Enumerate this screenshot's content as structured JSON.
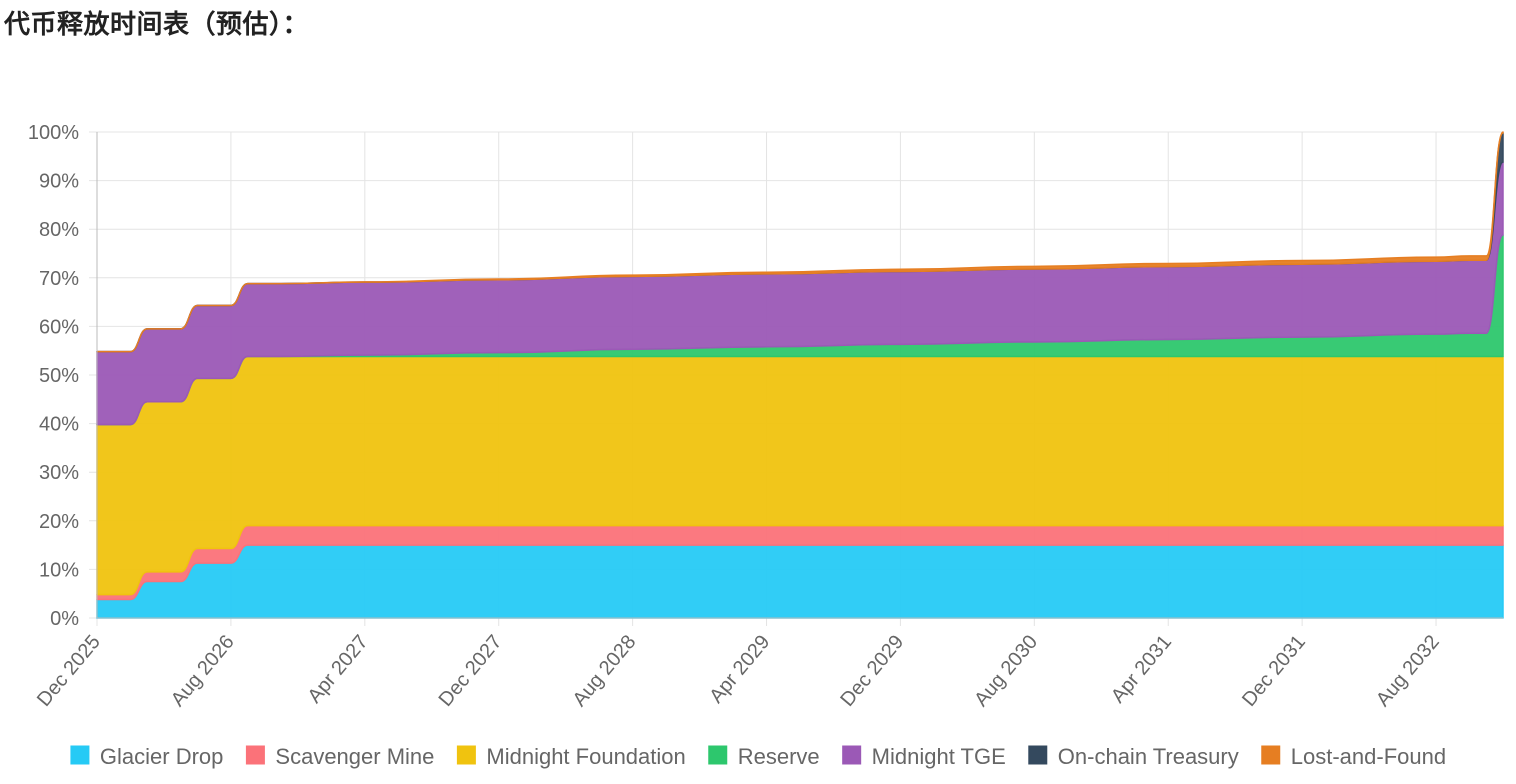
{
  "page": {
    "heading": "代币释放时间表（预估）："
  },
  "chart_data": {
    "type": "area",
    "stacked": true,
    "percent_scale": true,
    "grid": true,
    "legend_position": "bottom",
    "ylim": [
      0,
      100
    ],
    "y_ticks": [
      "0%",
      "10%",
      "20%",
      "30%",
      "40%",
      "50%",
      "60%",
      "70%",
      "80%",
      "90%",
      "100%"
    ],
    "x_ticks": [
      "Dec 2025",
      "Aug 2026",
      "Apr 2027",
      "Dec 2027",
      "Aug 2028",
      "Apr 2029",
      "Dec 2029",
      "Aug 2030",
      "Apr 2031",
      "Dec 2031",
      "Aug 2032"
    ],
    "x": [
      "2025-12",
      "2026-01",
      "2026-02",
      "2026-03",
      "2026-04",
      "2026-05",
      "2026-06",
      "2026-07",
      "2026-08",
      "2026-09",
      "2026-10",
      "2026-11",
      "2027-04",
      "2027-12",
      "2028-08",
      "2029-04",
      "2029-12",
      "2030-08",
      "2031-04",
      "2031-12",
      "2032-08",
      "2032-10",
      "2032-11",
      "2032-12"
    ],
    "series": [
      {
        "name": "Glacier Drop",
        "color": "#26caf5",
        "values": [
          3.8,
          3.8,
          3.8,
          7.5,
          7.5,
          7.5,
          11.3,
          11.3,
          11.3,
          15.0,
          15.0,
          15.0,
          15.0,
          15.0,
          15.0,
          15.0,
          15.0,
          15.0,
          15.0,
          15.0,
          15.0,
          15.0,
          15.0,
          15.0
        ]
      },
      {
        "name": "Scavenger Mine",
        "color": "#fb7279",
        "values": [
          1.0,
          1.0,
          1.0,
          2.0,
          2.0,
          2.0,
          3.0,
          3.0,
          3.0,
          4.0,
          4.0,
          4.0,
          4.0,
          4.0,
          4.0,
          4.0,
          4.0,
          4.0,
          4.0,
          4.0,
          4.0,
          4.0,
          4.0,
          4.0
        ]
      },
      {
        "name": "Midnight Foundation",
        "color": "#f0c30f",
        "values": [
          35.0,
          35.0,
          35.0,
          35.0,
          35.0,
          35.0,
          35.0,
          35.0,
          35.0,
          34.8,
          34.8,
          34.8,
          34.8,
          34.8,
          34.8,
          34.8,
          34.8,
          34.8,
          34.8,
          34.8,
          34.8,
          34.8,
          34.8,
          34.8
        ]
      },
      {
        "name": "Reserve",
        "color": "#2dc76d",
        "values": [
          0.0,
          0.0,
          0.0,
          0.0,
          0.0,
          0.0,
          0.0,
          0.0,
          0.0,
          0.0,
          0.0,
          0.0,
          0.3,
          0.8,
          1.5,
          2.0,
          2.5,
          3.0,
          3.5,
          4.0,
          4.6,
          4.8,
          4.8,
          25.0
        ]
      },
      {
        "name": "Midnight TGE",
        "color": "#9b59b6",
        "values": [
          15.0,
          15.0,
          15.0,
          15.0,
          15.0,
          15.0,
          15.0,
          15.0,
          15.0,
          15.0,
          15.0,
          15.0,
          15.0,
          15.0,
          15.0,
          15.0,
          15.0,
          15.0,
          15.0,
          15.0,
          15.0,
          15.0,
          15.0,
          15.0
        ]
      },
      {
        "name": "On-chain Treasury",
        "color": "#34495e",
        "values": [
          0.0,
          0.0,
          0.0,
          0.0,
          0.0,
          0.0,
          0.0,
          0.0,
          0.0,
          0.0,
          0.0,
          0.0,
          0.0,
          0.0,
          0.0,
          0.0,
          0.0,
          0.0,
          0.0,
          0.0,
          0.0,
          0.0,
          0.0,
          6.0
        ]
      },
      {
        "name": "Lost-and-Found",
        "color": "#e67e22",
        "values": [
          0.0,
          0.0,
          0.0,
          0.0,
          0.0,
          0.0,
          0.0,
          0.0,
          0.0,
          0.0,
          0.0,
          0.0,
          0.05,
          0.15,
          0.25,
          0.35,
          0.45,
          0.55,
          0.65,
          0.75,
          0.85,
          0.9,
          0.9,
          0.2
        ]
      }
    ]
  }
}
